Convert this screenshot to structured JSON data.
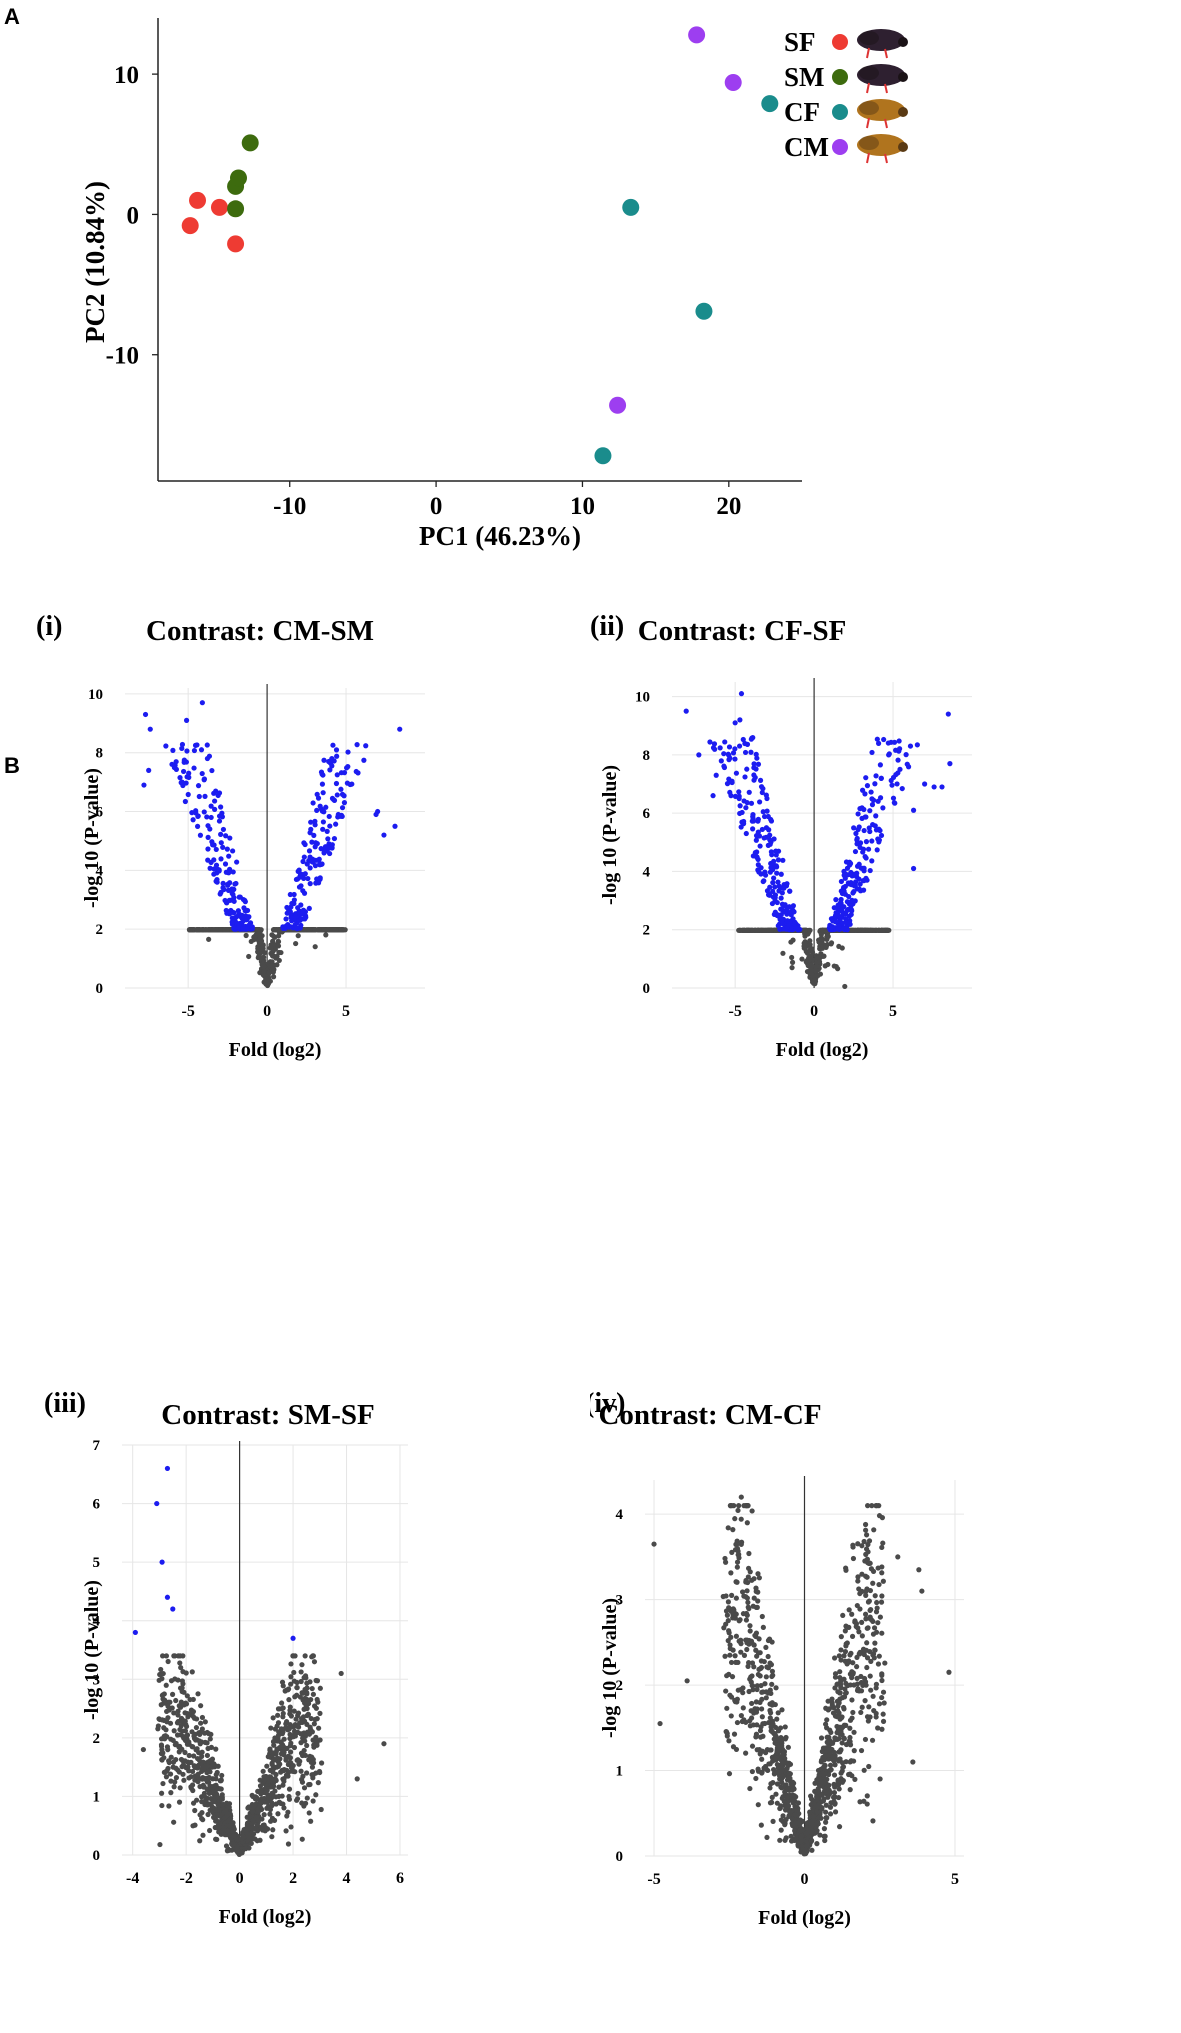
{
  "figure": {
    "panel_a_label": "A",
    "panel_b_label": "B"
  },
  "colors": {
    "SF": "#ee3b33",
    "SM": "#3d6b0e",
    "CF": "#1a8c8c",
    "CM": "#9d3ef0",
    "sig": "#1c1cf0",
    "nonsig": "#4a4a4a",
    "nonsig_light": "#6a6a6a",
    "grid": "#e6e6e6"
  },
  "chart_data": [
    {
      "id": "pca",
      "type": "scatter",
      "xlabel": "PC1 (46.23%)",
      "ylabel": "PC2 (10.84%)",
      "xlim": [
        -19,
        25
      ],
      "ylim": [
        14,
        -19
      ],
      "xticks": [
        -10,
        0,
        10,
        20
      ],
      "xticklabels": [
        "-10",
        "0",
        "10",
        "20"
      ],
      "yticks": [
        -10,
        0,
        10
      ],
      "yticklabels": [
        "-10",
        "0",
        "10"
      ],
      "legend": [
        {
          "key": "SF",
          "label": "SF",
          "icon": "dark-beetle-icon"
        },
        {
          "key": "SM",
          "label": "SM",
          "icon": "dark-beetle-icon"
        },
        {
          "key": "CF",
          "label": "CF",
          "icon": "amber-beetle-icon"
        },
        {
          "key": "CM",
          "label": "CM",
          "icon": "amber-beetle-icon"
        }
      ],
      "series": [
        {
          "name": "SF",
          "points": [
            [
              -16.8,
              -0.8
            ],
            [
              -16.3,
              1.0
            ],
            [
              -14.8,
              0.5
            ],
            [
              -13.7,
              -2.1
            ]
          ]
        },
        {
          "name": "SM",
          "points": [
            [
              -13.7,
              0.4
            ],
            [
              -13.7,
              2.0
            ],
            [
              -13.5,
              2.6
            ],
            [
              -12.7,
              5.1
            ]
          ]
        },
        {
          "name": "CF",
          "points": [
            [
              11.4,
              -17.2
            ],
            [
              18.3,
              -6.9
            ],
            [
              13.3,
              0.5
            ],
            [
              22.8,
              7.9
            ]
          ]
        },
        {
          "name": "CM",
          "points": [
            [
              12.4,
              -13.6
            ],
            [
              20.3,
              9.4
            ],
            [
              17.8,
              12.8
            ]
          ]
        }
      ]
    },
    {
      "id": "volcano-i",
      "type": "scatter",
      "panel_label": "(i)",
      "title": "Contrast:  CM-SM",
      "xlabel": "Fold (log2)",
      "ylabel": "-log 10 (P-value)",
      "xlim": [
        -9,
        10
      ],
      "ylim": [
        0,
        10.2
      ],
      "xticks": [
        -5,
        0,
        5
      ],
      "xticklabels": [
        "-5",
        "0",
        "5"
      ],
      "yticks": [
        0,
        2,
        4,
        6,
        8,
        10
      ],
      "yticklabels": [
        "0",
        "2",
        "4",
        "6",
        "8",
        "10"
      ],
      "threshold": 2,
      "volcano": {
        "seed": 11,
        "n_sig": 380,
        "n_non": 700,
        "spread": 8.8,
        "max_y": 9.8,
        "x_reach": 8.9
      },
      "highlights": [
        [
          -7.7,
          9.3
        ],
        [
          -7.4,
          8.8
        ],
        [
          -5.1,
          9.1
        ],
        [
          -4.1,
          9.7
        ],
        [
          -7.8,
          6.9
        ],
        [
          -7.5,
          7.4
        ],
        [
          8.4,
          8.8
        ],
        [
          8.1,
          5.5
        ],
        [
          7.4,
          5.2
        ],
        [
          7.0,
          6.0
        ],
        [
          6.9,
          5.9
        ],
        [
          4.1,
          7.8
        ],
        [
          3.9,
          7.7
        ]
      ]
    },
    {
      "id": "volcano-ii",
      "type": "scatter",
      "panel_label": "(ii)",
      "title": "Contrast:  CF-SF",
      "xlabel": "Fold (log2)",
      "ylabel": "-log 10 (P-value)",
      "xlim": [
        -9,
        10
      ],
      "ylim": [
        0,
        10.5
      ],
      "xticks": [
        -5,
        0,
        5
      ],
      "xticklabels": [
        "-5",
        "0",
        "5"
      ],
      "yticks": [
        0,
        2,
        4,
        6,
        8,
        10
      ],
      "yticklabels": [
        "0",
        "2",
        "4",
        "6",
        "8",
        "10"
      ],
      "threshold": 2,
      "volcano": {
        "seed": 23,
        "n_sig": 460,
        "n_non": 700,
        "spread": 8.8,
        "max_y": 10.1,
        "x_reach": 8.7
      },
      "highlights": [
        [
          -8.1,
          9.5
        ],
        [
          -7.3,
          8.0
        ],
        [
          -4.6,
          10.1
        ],
        [
          -5.0,
          9.1
        ],
        [
          -4.7,
          9.2
        ],
        [
          -6.4,
          6.6
        ],
        [
          -6.2,
          7.3
        ],
        [
          8.5,
          9.4
        ],
        [
          8.6,
          7.7
        ],
        [
          8.1,
          6.9
        ],
        [
          7.6,
          6.9
        ],
        [
          6.3,
          6.1
        ],
        [
          6.3,
          4.1
        ],
        [
          7.0,
          7.0
        ]
      ]
    },
    {
      "id": "volcano-iii",
      "type": "scatter",
      "panel_label": "(iii)",
      "title": "Contrast:  SM-SF",
      "xlabel": "Fold (log2)",
      "ylabel": "-log 10 (P-value)",
      "xlim": [
        -4.4,
        6.3
      ],
      "ylim": [
        0,
        7
      ],
      "xticks": [
        -4,
        -2,
        0,
        2,
        4,
        6
      ],
      "xticklabels": [
        "-4",
        "-2",
        "0",
        "2",
        "4",
        "6"
      ],
      "yticks": [
        0,
        1,
        2,
        3,
        4,
        5,
        6,
        7
      ],
      "yticklabels": [
        "0",
        "1",
        "2",
        "3",
        "4",
        "5",
        "6",
        "7"
      ],
      "threshold": 3.65,
      "volcano": {
        "seed": 37,
        "n_sig": 0,
        "n_non": 1300,
        "spread": 4.3,
        "max_y": 3.4,
        "x_reach": 5.5
      },
      "highlights": [
        [
          -2.7,
          6.6
        ],
        [
          -3.1,
          6.0
        ],
        [
          -2.9,
          5.0
        ],
        [
          -2.7,
          4.4
        ],
        [
          -2.5,
          4.2
        ],
        [
          -3.9,
          3.8
        ],
        [
          2.0,
          3.7
        ],
        [
          5.4,
          1.9
        ],
        [
          4.4,
          1.3
        ],
        [
          3.8,
          3.1
        ],
        [
          2.8,
          3.3
        ],
        [
          -3.6,
          1.8
        ]
      ]
    },
    {
      "id": "volcano-iv",
      "type": "scatter",
      "panel_label": "(iv)",
      "title": "Contrast:  CM-CF",
      "xlabel": "Fold (log2)",
      "ylabel": "-log 10 (P-value)",
      "xlim": [
        -5.3,
        5.3
      ],
      "ylim": [
        0,
        4.4
      ],
      "xticks": [
        -5,
        0,
        5
      ],
      "xticklabels": [
        "-5",
        "0",
        "5"
      ],
      "yticks": [
        0,
        1,
        2,
        3,
        4
      ],
      "yticklabels": [
        "0",
        "1",
        "2",
        "3",
        "4"
      ],
      "threshold": 99,
      "volcano": {
        "seed": 51,
        "n_sig": 0,
        "n_non": 1300,
        "spread": 4.2,
        "max_y": 4.1,
        "x_reach": 4.8
      },
      "highlights": [
        [
          -5.0,
          3.65
        ],
        [
          -4.8,
          1.55
        ],
        [
          -2.1,
          4.2
        ],
        [
          -1.9,
          3.9
        ],
        [
          3.1,
          3.5
        ],
        [
          3.8,
          3.35
        ],
        [
          3.9,
          3.1
        ],
        [
          4.8,
          2.15
        ],
        [
          3.6,
          1.1
        ],
        [
          -3.9,
          2.05
        ]
      ]
    }
  ]
}
